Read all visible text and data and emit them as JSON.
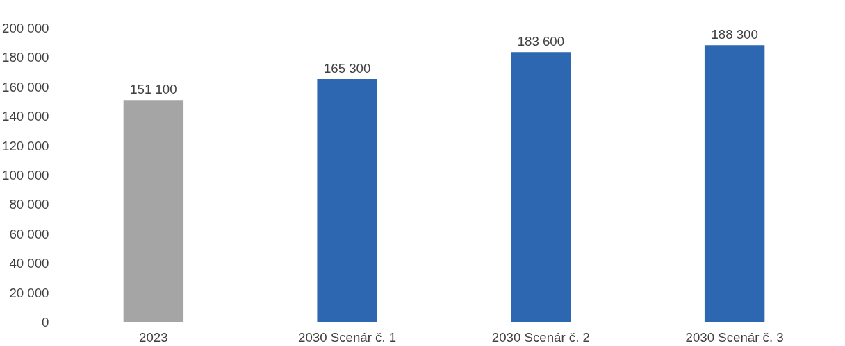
{
  "chart_data": {
    "type": "bar",
    "categories": [
      "2023",
      "2030 Scenár č. 1",
      "2030 Scenár č. 2",
      "2030 Scenár č. 3"
    ],
    "values": [
      151100,
      165300,
      183600,
      188300
    ],
    "colors": [
      "#a5a5a5",
      "#2e67b1",
      "#2e67b1",
      "#2e67b1"
    ],
    "value_labels": [
      "151 100",
      "165 300",
      "183 600",
      "188 300"
    ],
    "ylim": [
      0,
      200000
    ],
    "yticks": [
      {
        "value": 0,
        "label": "0"
      },
      {
        "value": 20000,
        "label": "20 000"
      },
      {
        "value": 40000,
        "label": "40 000"
      },
      {
        "value": 60000,
        "label": "60 000"
      },
      {
        "value": 80000,
        "label": "80 000"
      },
      {
        "value": 100000,
        "label": "100 000"
      },
      {
        "value": 120000,
        "label": "120 000"
      },
      {
        "value": 140000,
        "label": "140 000"
      },
      {
        "value": 160000,
        "label": "160 000"
      },
      {
        "value": 180000,
        "label": "180 000"
      },
      {
        "value": 200000,
        "label": "200 000"
      }
    ],
    "grid": false
  }
}
